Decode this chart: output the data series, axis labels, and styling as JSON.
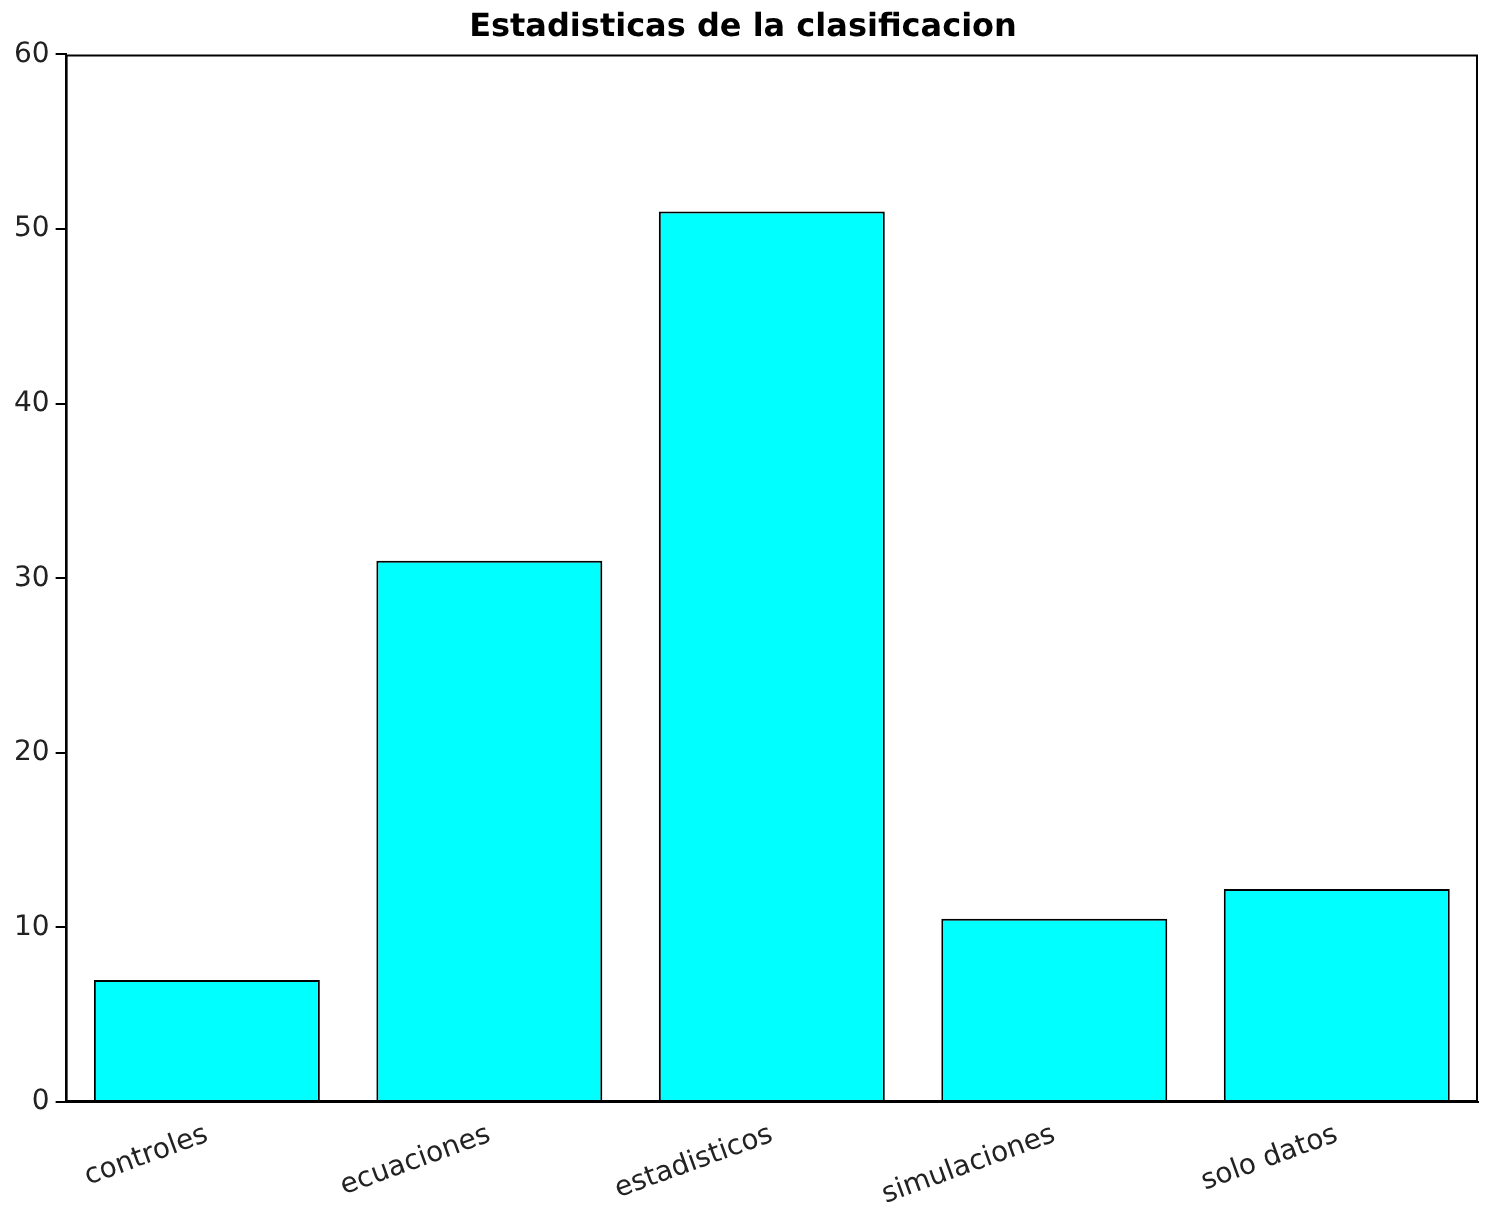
{
  "chart_data": {
    "type": "bar",
    "title": "Estadisticas de la clasificacion",
    "categories": [
      "controles",
      "ecuaciones",
      "estadisticos",
      "simulaciones",
      "solo datos"
    ],
    "values": [
      7,
      31,
      51,
      10.5,
      12.2
    ],
    "color": "#00ffff",
    "ylim": [
      0,
      60
    ],
    "yticks": [
      0,
      10,
      20,
      30,
      40,
      50,
      60
    ],
    "grid": false
  }
}
